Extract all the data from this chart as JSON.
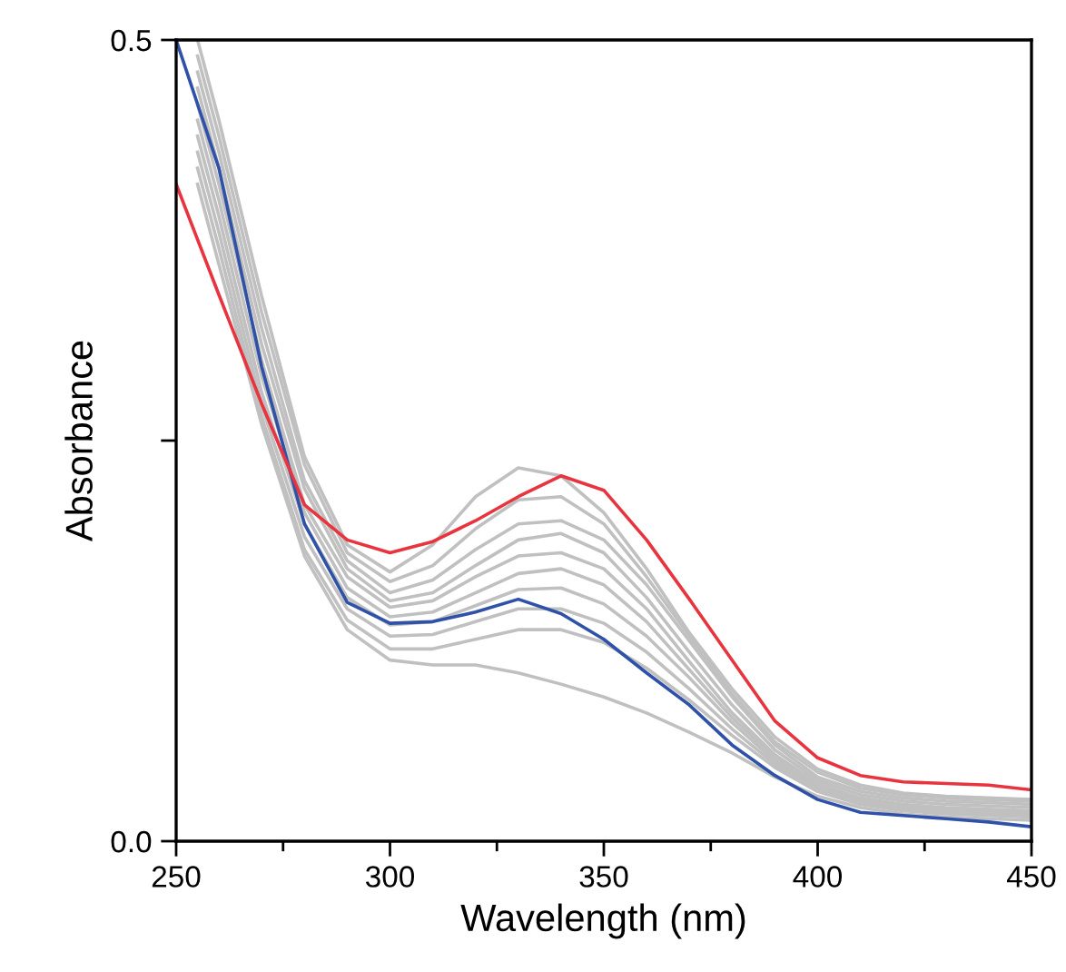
{
  "chart_data": {
    "type": "line",
    "xlabel": "Wavelength (nm)",
    "ylabel": "Absorbance",
    "xlim": [
      250,
      450
    ],
    "ylim": [
      0,
      0.5
    ],
    "xticks": [
      250,
      {
        "value": 275,
        "label": null
      },
      300,
      {
        "value": 325,
        "label": null
      },
      350,
      {
        "value": 375,
        "label": null
      },
      400,
      {
        "value": 425,
        "label": null
      },
      450
    ],
    "yticks": [
      {
        "value": 0,
        "label": "0.0"
      },
      {
        "value": 0.25,
        "label": null
      },
      0.5
    ],
    "grid": false,
    "marker": "none",
    "line_style": "solid",
    "series": [
      {
        "color": "#c0c0c0",
        "x": [
          255,
          260,
          270,
          280,
          290,
          300,
          310,
          320,
          330,
          340,
          350,
          360,
          370,
          380,
          390,
          400,
          410,
          420,
          430,
          440,
          450
        ],
        "values": [
          0.5,
          0.45,
          0.34,
          0.24,
          0.185,
          0.168,
          0.185,
          0.215,
          0.233,
          0.228,
          0.205,
          0.17,
          0.13,
          0.095,
          0.065,
          0.045,
          0.035,
          0.03,
          0.028,
          0.027,
          0.026
        ]
      },
      {
        "color": "#c0c0c0",
        "x": [
          255,
          260,
          270,
          280,
          290,
          300,
          310,
          320,
          330,
          340,
          350,
          360,
          370,
          380,
          390,
          400,
          410,
          420,
          430,
          440,
          450
        ],
        "values": [
          0.49,
          0.44,
          0.33,
          0.235,
          0.18,
          0.162,
          0.172,
          0.195,
          0.213,
          0.215,
          0.198,
          0.165,
          0.128,
          0.092,
          0.062,
          0.043,
          0.033,
          0.029,
          0.027,
          0.026,
          0.025
        ]
      },
      {
        "color": "#c0c0c0",
        "x": [
          255,
          260,
          270,
          280,
          290,
          300,
          310,
          320,
          330,
          340,
          350,
          360,
          370,
          380,
          390,
          400,
          410,
          420,
          430,
          440,
          450
        ],
        "values": [
          0.48,
          0.43,
          0.32,
          0.225,
          0.175,
          0.155,
          0.163,
          0.182,
          0.198,
          0.2,
          0.188,
          0.16,
          0.125,
          0.09,
          0.06,
          0.04,
          0.031,
          0.027,
          0.025,
          0.024,
          0.023
        ]
      },
      {
        "color": "#c0c0c0",
        "x": [
          255,
          260,
          270,
          280,
          290,
          300,
          310,
          320,
          330,
          340,
          350,
          360,
          370,
          380,
          390,
          400,
          410,
          420,
          430,
          440,
          450
        ],
        "values": [
          0.47,
          0.42,
          0.31,
          0.22,
          0.17,
          0.15,
          0.155,
          0.172,
          0.188,
          0.192,
          0.18,
          0.152,
          0.118,
          0.085,
          0.057,
          0.038,
          0.029,
          0.025,
          0.023,
          0.022,
          0.021
        ]
      },
      {
        "color": "#c0c0c0",
        "x": [
          255,
          260,
          270,
          280,
          290,
          300,
          310,
          320,
          330,
          340,
          350,
          360,
          370,
          380,
          390,
          400,
          410,
          420,
          430,
          440,
          450
        ],
        "values": [
          0.46,
          0.41,
          0.3,
          0.21,
          0.165,
          0.146,
          0.15,
          0.165,
          0.178,
          0.18,
          0.17,
          0.145,
          0.112,
          0.08,
          0.054,
          0.036,
          0.027,
          0.023,
          0.021,
          0.02,
          0.019
        ]
      },
      {
        "color": "#c0c0c0",
        "x": [
          255,
          260,
          270,
          280,
          290,
          300,
          310,
          320,
          330,
          340,
          350,
          360,
          370,
          380,
          390,
          400,
          410,
          420,
          430,
          440,
          450
        ],
        "values": [
          0.45,
          0.4,
          0.29,
          0.205,
          0.158,
          0.14,
          0.143,
          0.155,
          0.167,
          0.17,
          0.16,
          0.137,
          0.107,
          0.077,
          0.052,
          0.035,
          0.026,
          0.022,
          0.02,
          0.019,
          0.018
        ]
      },
      {
        "color": "#c0c0c0",
        "x": [
          255,
          260,
          270,
          280,
          290,
          300,
          310,
          320,
          330,
          340,
          350,
          360,
          370,
          380,
          390,
          400,
          410,
          420,
          430,
          440,
          450
        ],
        "values": [
          0.44,
          0.39,
          0.28,
          0.198,
          0.152,
          0.135,
          0.137,
          0.147,
          0.157,
          0.158,
          0.148,
          0.128,
          0.102,
          0.074,
          0.05,
          0.034,
          0.025,
          0.021,
          0.019,
          0.018,
          0.017
        ]
      },
      {
        "color": "#c0c0c0",
        "x": [
          255,
          260,
          270,
          280,
          290,
          300,
          310,
          320,
          330,
          340,
          350,
          360,
          370,
          380,
          390,
          400,
          410,
          420,
          430,
          440,
          450
        ],
        "values": [
          0.43,
          0.38,
          0.272,
          0.19,
          0.145,
          0.128,
          0.129,
          0.137,
          0.145,
          0.145,
          0.136,
          0.118,
          0.095,
          0.07,
          0.048,
          0.033,
          0.024,
          0.02,
          0.018,
          0.017,
          0.016
        ]
      },
      {
        "color": "#c0c0c0",
        "x": [
          255,
          260,
          270,
          280,
          290,
          300,
          310,
          320,
          330,
          340,
          350,
          360,
          370,
          380,
          390,
          400,
          410,
          420,
          430,
          440,
          450
        ],
        "values": [
          0.42,
          0.37,
          0.265,
          0.182,
          0.138,
          0.12,
          0.12,
          0.126,
          0.132,
          0.132,
          0.124,
          0.108,
          0.088,
          0.066,
          0.046,
          0.031,
          0.023,
          0.019,
          0.017,
          0.016,
          0.015
        ]
      },
      {
        "color": "#c0c0c0",
        "x": [
          255,
          260,
          270,
          280,
          290,
          300,
          310,
          320,
          330,
          340,
          350,
          360,
          370,
          380,
          390,
          400,
          410,
          420,
          430,
          440,
          450
        ],
        "values": [
          0.41,
          0.36,
          0.26,
          0.178,
          0.132,
          0.113,
          0.11,
          0.11,
          0.105,
          0.098,
          0.09,
          0.08,
          0.068,
          0.055,
          0.04,
          0.028,
          0.021,
          0.017,
          0.015,
          0.014,
          0.013
        ]
      },
      {
        "color": "#2f52a8",
        "x": [
          250,
          260,
          270,
          280,
          290,
          300,
          310,
          320,
          330,
          340,
          350,
          360,
          370,
          380,
          390,
          400,
          410,
          420,
          430,
          440,
          450
        ],
        "values": [
          0.5,
          0.42,
          0.296,
          0.198,
          0.149,
          0.136,
          0.137,
          0.143,
          0.151,
          0.142,
          0.126,
          0.105,
          0.085,
          0.06,
          0.041,
          0.026,
          0.018,
          0.016,
          0.014,
          0.012,
          0.009
        ]
      },
      {
        "color": "#e8343f",
        "x": [
          250,
          260,
          270,
          280,
          290,
          300,
          310,
          320,
          330,
          340,
          350,
          360,
          370,
          380,
          390,
          400,
          410,
          420,
          430,
          440,
          450
        ],
        "values": [
          0.41,
          0.341,
          0.273,
          0.21,
          0.188,
          0.18,
          0.187,
          0.2,
          0.215,
          0.228,
          0.219,
          0.188,
          0.151,
          0.113,
          0.075,
          0.052,
          0.041,
          0.037,
          0.036,
          0.035,
          0.032
        ]
      }
    ]
  }
}
